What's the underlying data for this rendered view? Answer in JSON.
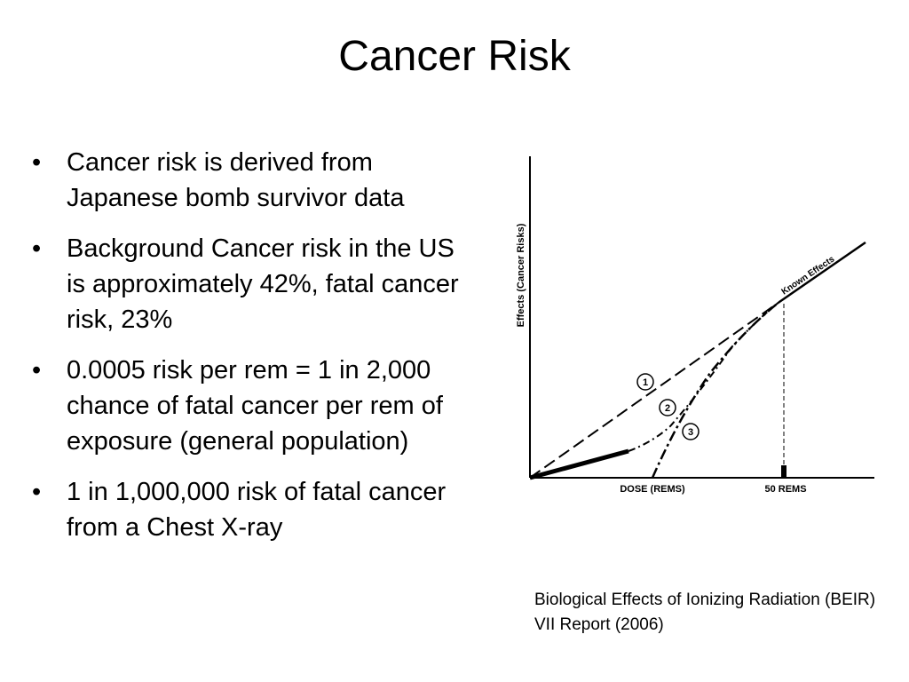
{
  "slide": {
    "title": "Cancer Risk",
    "bullet_symbol": "•",
    "bullets": [
      "Cancer risk is derived from Japanese bomb survivor data",
      "Background Cancer risk in the US is approximately 42%, fatal cancer risk, 23%",
      "0.0005 risk per rem = 1 in 2,000 chance of fatal cancer per rem of exposure (general population)",
      "1 in 1,000,000 risk of fatal cancer from a Chest X-ray"
    ]
  },
  "figure": {
    "y_axis_label": "Effects (Cancer Risks)",
    "x_tick_dose": "DOSE (REMS)",
    "x_tick_50": "50 REMS",
    "known_effects_label": "Known Effects",
    "curve_markers": [
      "1",
      "2",
      "3"
    ]
  },
  "caption": {
    "text": "Biological Effects of Ionizing Radiation (BEIR) VII Report (2006)"
  }
}
